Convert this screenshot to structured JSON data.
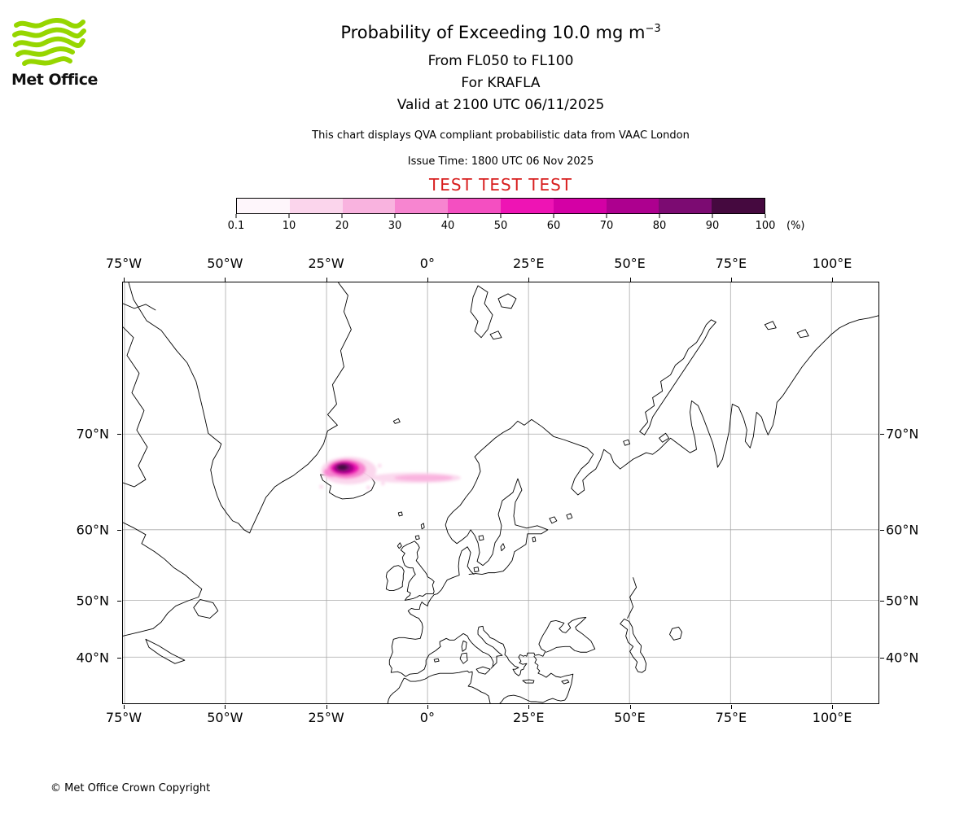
{
  "logo": {
    "brand": "Met Office"
  },
  "header": {
    "title_main": "Probability of Exceeding 10.0 mg m",
    "title_sup": "−3",
    "subtitle_levels": "From FL050 to FL100",
    "subtitle_volcano": "For KRAFLA",
    "subtitle_valid": "Valid at 2100 UTC 06/11/2025",
    "description": "This chart displays QVA compliant probabilistic data from VAAC London",
    "issue_time": "Issue Time: 1800 UTC 06 Nov 2025",
    "test_banner": "TEST TEST TEST"
  },
  "legend": {
    "unit_label": "(%)",
    "tick_labels": [
      "0.1",
      "10",
      "20",
      "30",
      "40",
      "50",
      "60",
      "70",
      "80",
      "90",
      "100"
    ],
    "colors": [
      "#fef6fb",
      "#fbd5ec",
      "#f9b3df",
      "#f785d0",
      "#f44fc1",
      "#ee14b4",
      "#d400a5",
      "#ad008f",
      "#7c0b72",
      "#45093f"
    ]
  },
  "map": {
    "lon_labels": [
      "75°W",
      "50°W",
      "25°W",
      "0°",
      "25°E",
      "50°E",
      "75°E",
      "100°E"
    ],
    "lat_labels": [
      "70°N",
      "60°N",
      "50°N",
      "40°N"
    ],
    "plume": {
      "region": "Iceland",
      "core_color": "#45093f",
      "tail_color": "#f9b3df"
    }
  },
  "footer": {
    "copyright": "© Met Office Crown Copyright"
  }
}
